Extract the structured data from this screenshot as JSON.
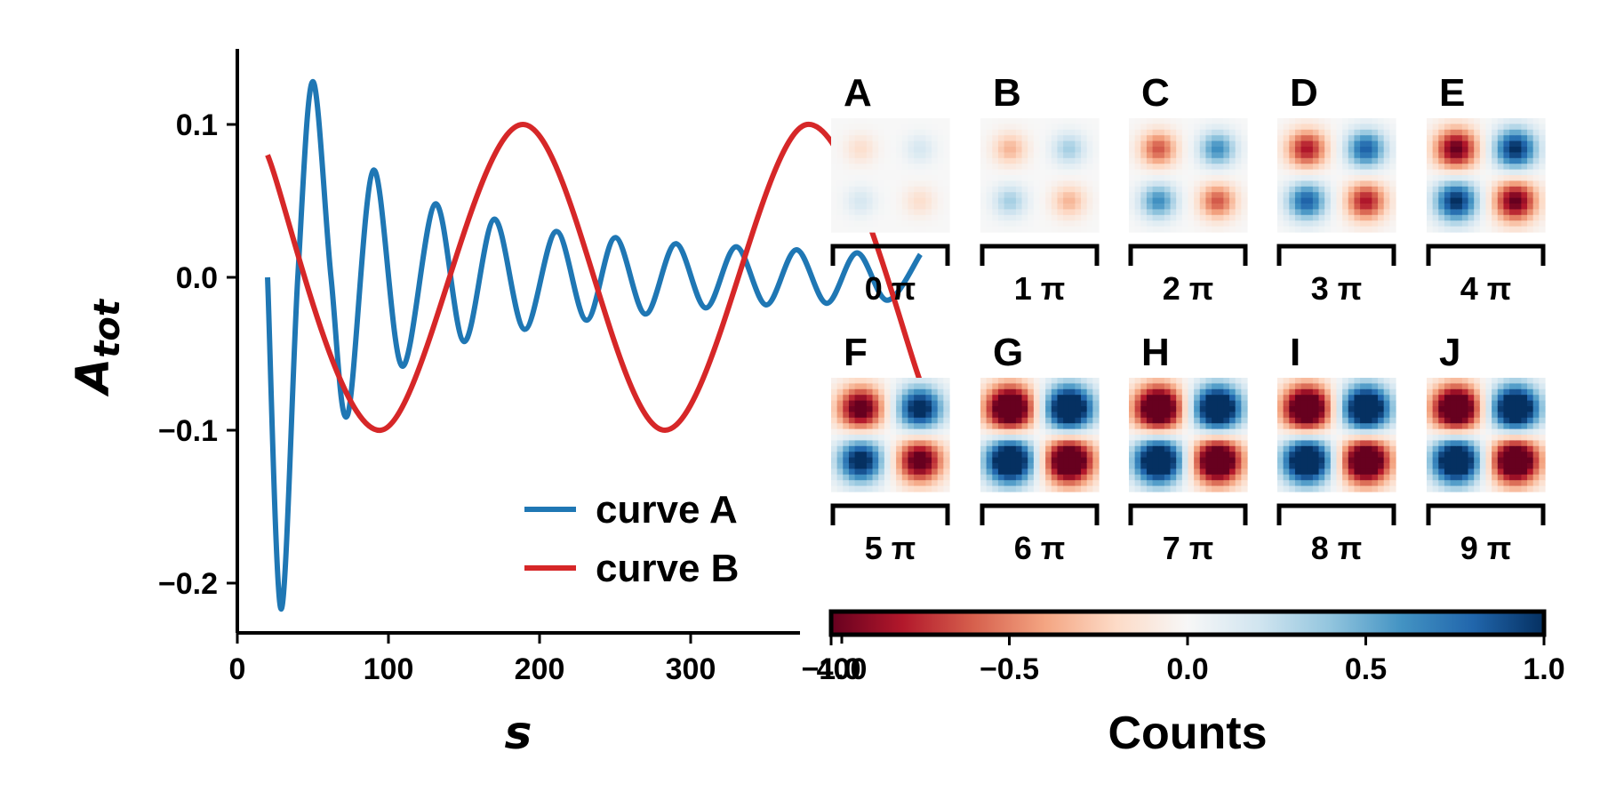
{
  "chart_data": [
    {
      "type": "line",
      "xlabel": "s",
      "ylabel_main": "A",
      "ylabel_sub": "tot",
      "xlim": [
        0,
        470
      ],
      "ylim": [
        -0.235,
        0.148
      ],
      "xticks": [
        0,
        100,
        200,
        300,
        400
      ],
      "xtick_labels": [
        "0",
        "100",
        "200",
        "300",
        "400"
      ],
      "yticks": [
        0.1,
        0.0,
        -0.1,
        -0.2
      ],
      "ytick_labels": [
        "0.1",
        "0.0",
        "−0.1",
        "−0.2"
      ],
      "legend_position": "lower-right",
      "series": [
        {
          "name": "curve A",
          "color": "#1f77b4",
          "x": [
            20,
            29,
            40,
            50,
            62,
            73,
            90,
            109,
            131,
            150,
            170,
            190,
            211,
            231,
            250,
            270,
            290,
            310,
            330,
            350,
            370,
            390,
            410,
            430,
            452
          ],
          "y": [
            0.0,
            -0.217,
            0.0,
            0.128,
            0.0,
            -0.09,
            0.07,
            -0.058,
            0.048,
            -0.042,
            0.038,
            -0.034,
            0.03,
            -0.028,
            0.026,
            -0.024,
            0.022,
            -0.02,
            0.02,
            -0.018,
            0.018,
            -0.017,
            0.016,
            -0.015,
            0.015
          ]
        },
        {
          "name": "curve B",
          "color": "#d62728",
          "x": [
            20,
            95,
            189,
            283,
            377,
            455
          ],
          "y": [
            0.08,
            -0.1,
            0.1,
            -0.1,
            0.1,
            -0.076
          ]
        }
      ]
    },
    {
      "type": "heatmap",
      "panels": [
        {
          "letter": "A",
          "phase": "0 π",
          "amplitude": 0.15
        },
        {
          "letter": "B",
          "phase": "1 π",
          "amplitude": 0.3
        },
        {
          "letter": "C",
          "phase": "2 π",
          "amplitude": 0.55
        },
        {
          "letter": "D",
          "phase": "3 π",
          "amplitude": 0.72
        },
        {
          "letter": "E",
          "phase": "4 π",
          "amplitude": 0.9
        },
        {
          "letter": "F",
          "phase": "5 π",
          "amplitude": 1.0
        },
        {
          "letter": "G",
          "phase": "6 π",
          "amplitude": 1.0
        },
        {
          "letter": "H",
          "phase": "7 π",
          "amplitude": 1.0
        },
        {
          "letter": "I",
          "phase": "8 π",
          "amplitude": 1.0
        },
        {
          "letter": "J",
          "phase": "9 π",
          "amplitude": 1.0
        }
      ],
      "colorbar": {
        "label": "Counts",
        "range": [
          -1.0,
          1.0
        ],
        "ticks": [
          -1.0,
          -0.5,
          0.0,
          0.5,
          1.0
        ],
        "tick_labels": [
          "−1.0",
          "−0.5",
          "0.0",
          "0.5",
          "1.0"
        ],
        "colormap_stops": [
          "#67001f",
          "#b2182b",
          "#d6604d",
          "#f4a582",
          "#fddbc7",
          "#f7f7f7",
          "#d1e5f0",
          "#92c5de",
          "#4393c3",
          "#2166ac",
          "#053061"
        ]
      }
    }
  ]
}
